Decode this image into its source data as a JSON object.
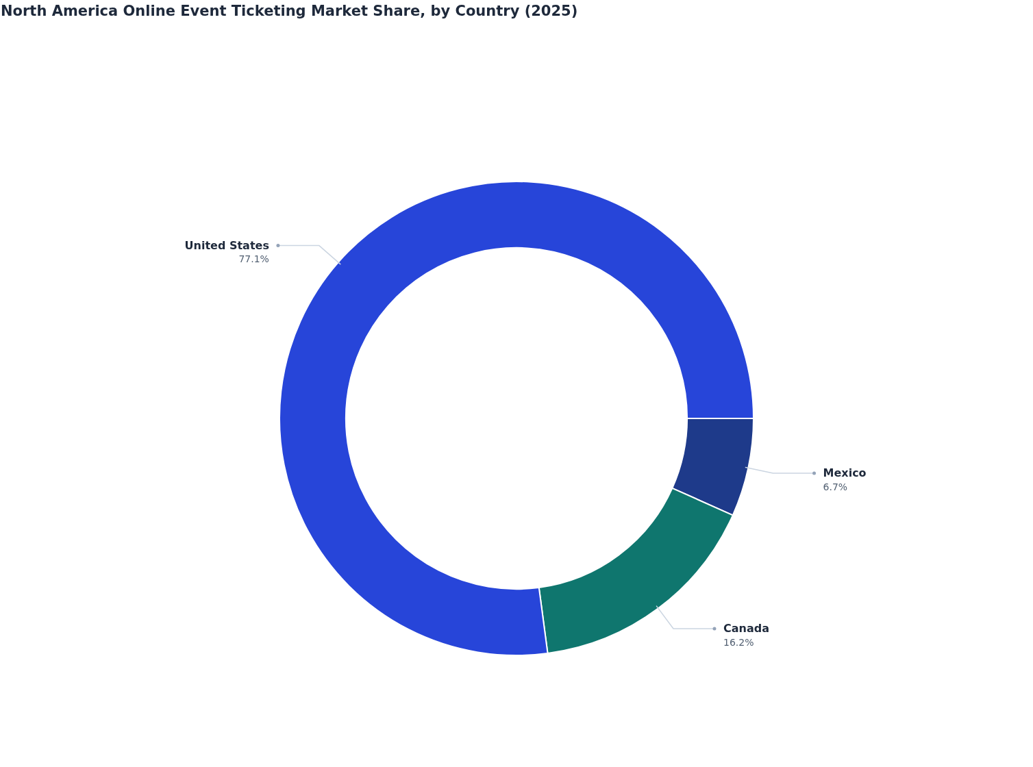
{
  "chart_data": {
    "type": "donut",
    "title": "North America Online Event Ticketing Market Share, by Country (2025)",
    "categories": [
      "Mexico",
      "Canada",
      "United States"
    ],
    "values": [
      6.7,
      16.2,
      77.1
    ],
    "colors": [
      "#1e3a8a",
      "#0f766e",
      "#2745d9"
    ],
    "value_labels": [
      "6.7%",
      "16.2%",
      "77.1%"
    ]
  }
}
